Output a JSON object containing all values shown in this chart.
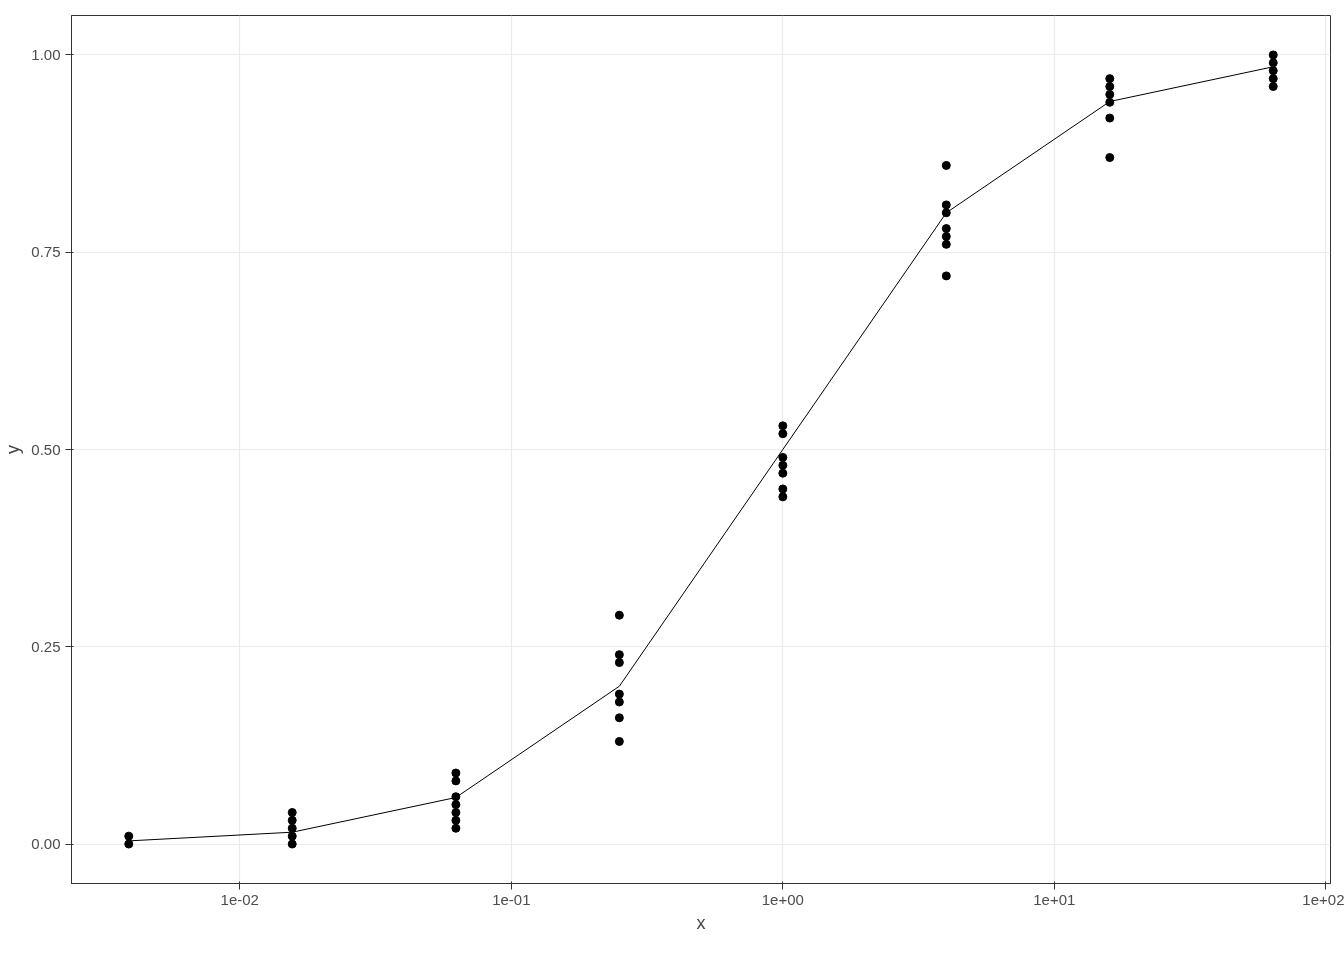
{
  "chart_data": {
    "type": "scatter",
    "xlabel": "x",
    "ylabel": "y",
    "log": "x",
    "grid": true,
    "marker": "circle",
    "xlim": [
      0.0024,
      104
    ],
    "ylim": [
      -0.05,
      1.05
    ],
    "xticks": [
      {
        "value": 0.01,
        "label": "1e-02"
      },
      {
        "value": 0.1,
        "label": "1e-01"
      },
      {
        "value": 1,
        "label": "1e+00"
      },
      {
        "value": 10,
        "label": "1e+01"
      },
      {
        "value": 100,
        "label": "1e+02"
      }
    ],
    "yticks": [
      {
        "value": 0,
        "label": "0.00"
      },
      {
        "value": 0.25,
        "label": "0.25"
      },
      {
        "value": 0.5,
        "label": "0.50"
      },
      {
        "value": 0.75,
        "label": "0.75"
      },
      {
        "value": 1,
        "label": "1.00"
      }
    ],
    "series": [
      {
        "color": "#000000",
        "x": [
          0.0039,
          0.0039,
          0.0156,
          0.0156,
          0.0156,
          0.0156,
          0.0156,
          0.0625,
          0.0625,
          0.0625,
          0.0625,
          0.0625,
          0.0625,
          0.0625,
          0.25,
          0.25,
          0.25,
          0.25,
          0.25,
          0.25,
          0.25,
          1,
          1,
          1,
          1,
          1,
          1,
          1,
          4,
          4,
          4,
          4,
          4,
          4,
          4,
          16,
          16,
          16,
          16,
          16,
          16,
          64,
          64,
          64,
          64,
          64
        ],
        "values": [
          0.0,
          0.01,
          0.0,
          0.01,
          0.02,
          0.03,
          0.04,
          0.02,
          0.03,
          0.04,
          0.05,
          0.06,
          0.08,
          0.09,
          0.13,
          0.16,
          0.18,
          0.19,
          0.23,
          0.24,
          0.29,
          0.44,
          0.45,
          0.47,
          0.48,
          0.49,
          0.52,
          0.53,
          0.72,
          0.76,
          0.77,
          0.78,
          0.8,
          0.81,
          0.86,
          0.87,
          0.92,
          0.94,
          0.95,
          0.96,
          0.97,
          0.96,
          0.97,
          0.98,
          0.99,
          1.0
        ]
      },
      {
        "type": "line",
        "marker": "none",
        "color": "#000000",
        "x": [
          0.0039,
          0.0156,
          0.0625,
          0.25,
          1,
          4,
          16,
          64
        ],
        "values": [
          0.004,
          0.015,
          0.059,
          0.2,
          0.5,
          0.8,
          0.941,
          0.985
        ]
      }
    ]
  }
}
